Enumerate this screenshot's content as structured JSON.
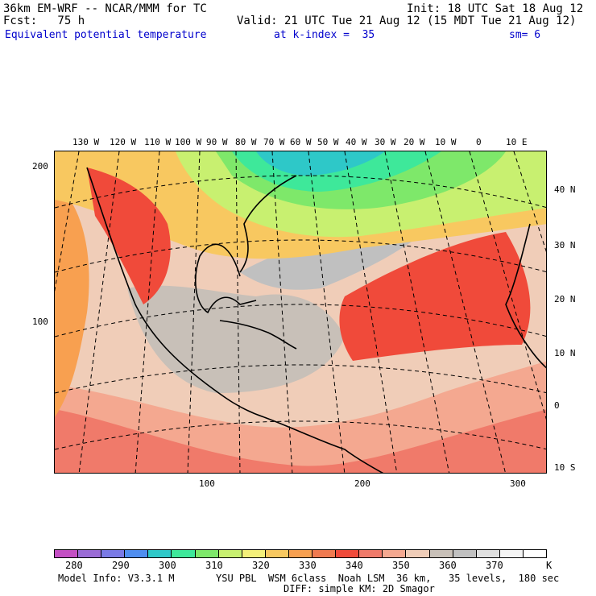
{
  "header": {
    "model": "36km EM-WRF -- NCAR/MMM for TC",
    "init": "Init: 18 UTC Sat 18 Aug 12",
    "fcst": "Fcst:   75 h",
    "valid": "Valid: 21 UTC Tue 21 Aug 12 (15 MDT Tue 21 Aug 12)",
    "field": "Equivalent potential temperature",
    "level": "at k-index =  35",
    "smooth": "sm= 6"
  },
  "longitude_labels": [
    "130 W",
    "120 W",
    "110 W",
    "100 W",
    "90 W",
    "80 W",
    "70 W",
    "60 W",
    "50 W",
    "40 W",
    "30 W",
    "20 W",
    "10 W",
    "0",
    "10 E"
  ],
  "latitude_labels": [
    "40 N",
    "30 N",
    "20 N",
    "10 N",
    "0",
    "10 S"
  ],
  "grid_y_labels": [
    "200",
    "100"
  ],
  "grid_x_labels": [
    "100",
    "200",
    "300"
  ],
  "colorbar": {
    "labels": [
      "280",
      "290",
      "300",
      "310",
      "320",
      "330",
      "340",
      "350",
      "360",
      "370"
    ],
    "unit": "K",
    "colors": [
      "#c44fc4",
      "#9a6bd6",
      "#7a7ae6",
      "#4f8ef0",
      "#2ec8c8",
      "#3ee89a",
      "#7ee86a",
      "#c8f070",
      "#f4f07a",
      "#f8c860",
      "#f8a050",
      "#f07a50",
      "#f04a3a",
      "#f07a6a",
      "#f4a890",
      "#f0cdb8",
      "#c8c0b8",
      "#c0c0c0",
      "#e0e0e0",
      "#f4f4f4",
      "#ffffff"
    ]
  },
  "footer": {
    "info": "Model Info: V3.3.1 M",
    "physics": "YSU PBL  WSM 6class  Noah LSM  36 km,   35 levels,  180 sec",
    "diff": "DIFF: simple KM: 2D Smagor"
  }
}
